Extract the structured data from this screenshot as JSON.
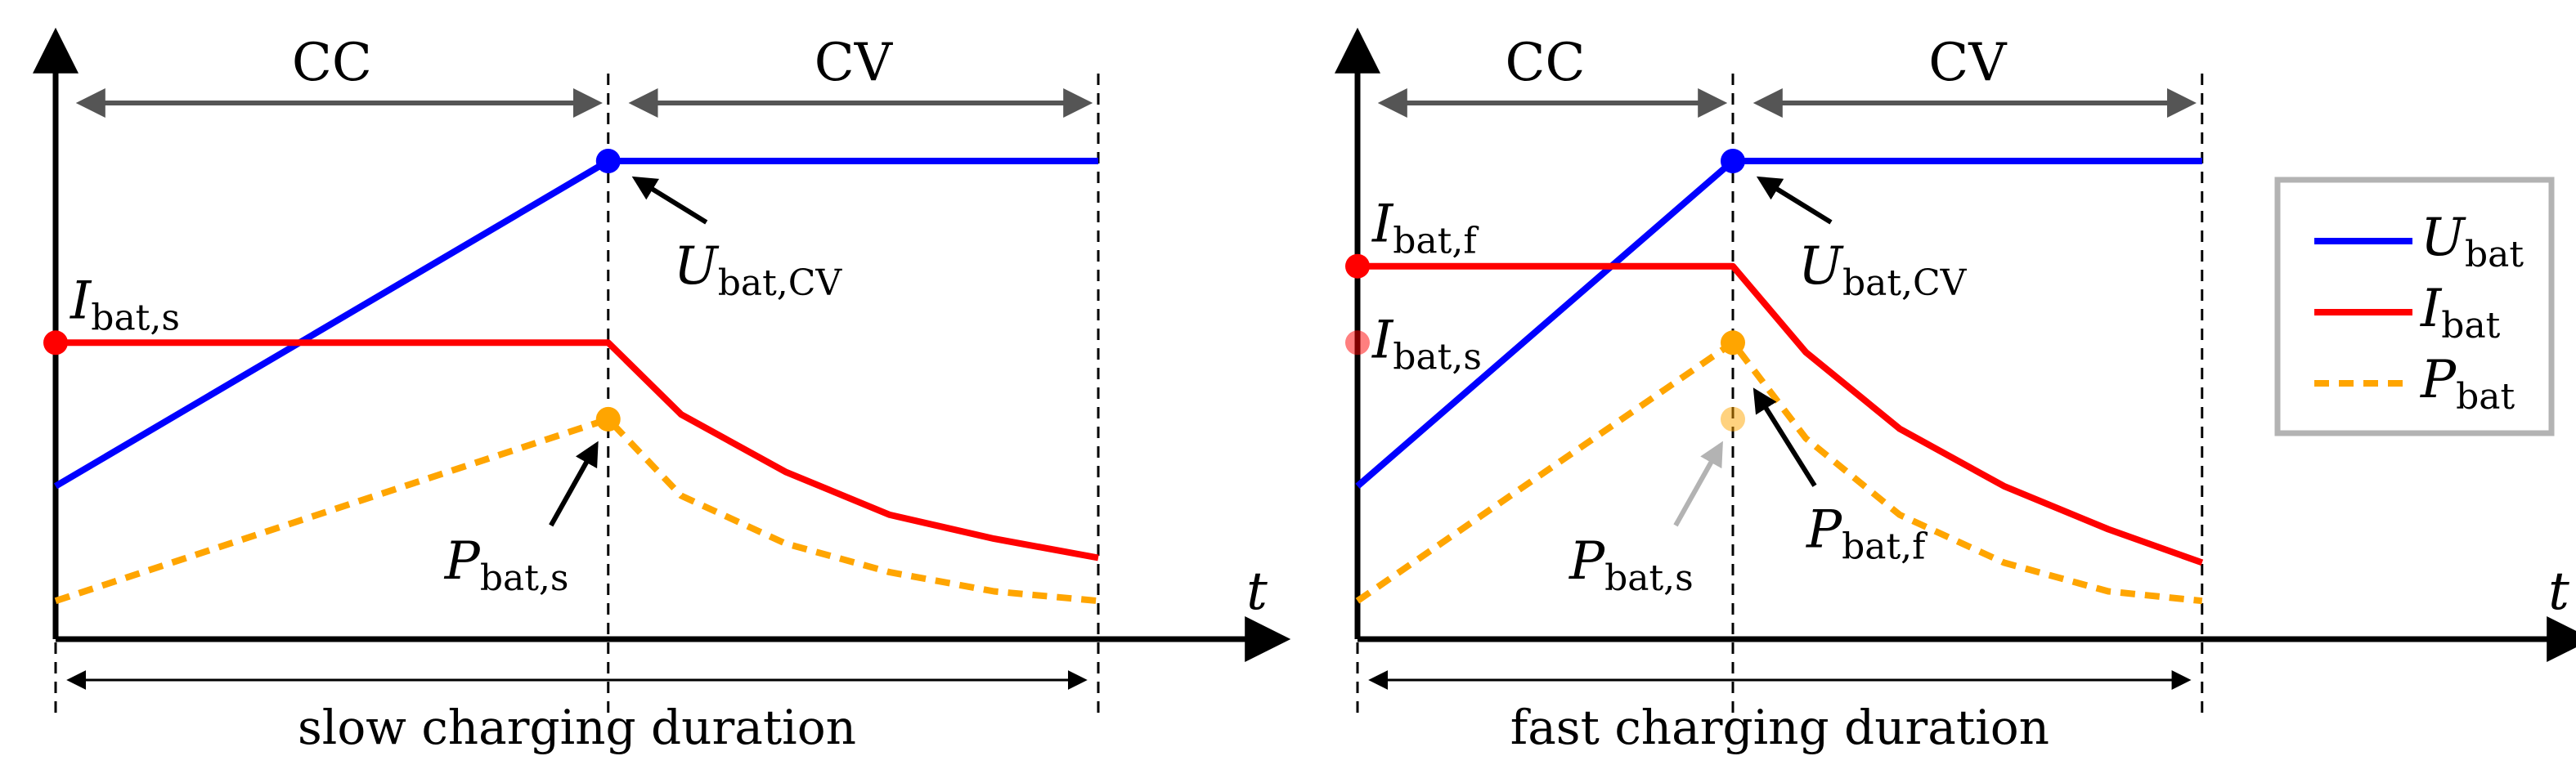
{
  "figure": {
    "legend": {
      "items": [
        {
          "symbol": "U",
          "subscript": "bat",
          "color": "#0000ff",
          "style": "solid"
        },
        {
          "symbol": "I",
          "subscript": "bat",
          "color": "#ff0000",
          "style": "solid"
        },
        {
          "symbol": "P",
          "subscript": "bat",
          "color": "#ffa500",
          "style": "dashed"
        }
      ],
      "position": "right"
    },
    "colors": {
      "voltage": "#0000ff",
      "current": "#ff0000",
      "power": "#ffa500",
      "faded": "#b3b3b3",
      "phase_arrow": "#555555"
    }
  },
  "chart_data": [
    {
      "type": "line",
      "title": "",
      "xlabel": "t",
      "ylabel": "",
      "x_unit": "normalized time (slow duration = 1)",
      "xlim": [
        0,
        1.16
      ],
      "ylim": [
        0,
        1.1
      ],
      "duration_label": "slow charging duration",
      "phases": [
        {
          "label": "CC",
          "start": 0,
          "end": 0.53
        },
        {
          "label": "CV",
          "start": 0.53,
          "end": 1.0
        }
      ],
      "series": [
        {
          "name": "U_bat",
          "points": [
            [
              0,
              0.32
            ],
            [
              0.53,
              1.0
            ],
            [
              1.0,
              1.0
            ]
          ]
        },
        {
          "name": "I_bat",
          "points": [
            [
              0,
              0.62
            ],
            [
              0.53,
              0.62
            ],
            [
              0.6,
              0.47
            ],
            [
              0.7,
              0.35
            ],
            [
              0.8,
              0.26
            ],
            [
              0.9,
              0.21
            ],
            [
              1.0,
              0.17
            ]
          ]
        },
        {
          "name": "P_bat",
          "points": [
            [
              0,
              0.08
            ],
            [
              0.53,
              0.46
            ],
            [
              0.6,
              0.3
            ],
            [
              0.7,
              0.2
            ],
            [
              0.8,
              0.14
            ],
            [
              0.9,
              0.1
            ],
            [
              1.0,
              0.08
            ]
          ]
        }
      ],
      "annotations": [
        {
          "symbol": "I",
          "subscript": "bat,s",
          "series": "I_bat",
          "x": 0,
          "y": 0.62,
          "faded": false
        },
        {
          "symbol": "U",
          "subscript": "bat,CV",
          "series": "U_bat",
          "x": 0.53,
          "y": 1.0,
          "faded": false
        },
        {
          "symbol": "P",
          "subscript": "bat,s",
          "series": "P_bat",
          "x": 0.53,
          "y": 0.46,
          "faded": false
        }
      ]
    },
    {
      "type": "line",
      "title": "",
      "xlabel": "t",
      "ylabel": "",
      "x_unit": "normalized time (slow duration = 1)",
      "xlim": [
        0,
        1.16
      ],
      "ylim": [
        0,
        1.1
      ],
      "duration_label": "fast charging duration",
      "phases": [
        {
          "label": "CC",
          "start": 0,
          "end": 0.36
        },
        {
          "label": "CV",
          "start": 0.36,
          "end": 0.81
        }
      ],
      "series": [
        {
          "name": "U_bat",
          "points": [
            [
              0,
              0.32
            ],
            [
              0.36,
              1.0
            ],
            [
              0.81,
              1.0
            ]
          ]
        },
        {
          "name": "I_bat",
          "points": [
            [
              0,
              0.78
            ],
            [
              0.36,
              0.78
            ],
            [
              0.43,
              0.6
            ],
            [
              0.52,
              0.44
            ],
            [
              0.62,
              0.32
            ],
            [
              0.72,
              0.23
            ],
            [
              0.81,
              0.16
            ]
          ]
        },
        {
          "name": "P_bat",
          "points": [
            [
              0,
              0.08
            ],
            [
              0.36,
              0.62
            ],
            [
              0.43,
              0.42
            ],
            [
              0.52,
              0.26
            ],
            [
              0.62,
              0.16
            ],
            [
              0.72,
              0.1
            ],
            [
              0.81,
              0.08
            ]
          ]
        }
      ],
      "annotations": [
        {
          "symbol": "I",
          "subscript": "bat,f",
          "series": "I_bat",
          "x": 0,
          "y": 0.78,
          "faded": false
        },
        {
          "symbol": "I",
          "subscript": "bat,s",
          "series": "I_bat",
          "x": 0,
          "y": 0.62,
          "faded": true
        },
        {
          "symbol": "U",
          "subscript": "bat,CV",
          "series": "U_bat",
          "x": 0.36,
          "y": 1.0,
          "faded": false
        },
        {
          "symbol": "P",
          "subscript": "bat,f",
          "series": "P_bat",
          "x": 0.36,
          "y": 0.62,
          "faded": false
        },
        {
          "symbol": "P",
          "subscript": "bat,s",
          "series": "P_bat",
          "x": 0.36,
          "y": 0.46,
          "faded": true
        }
      ]
    }
  ]
}
